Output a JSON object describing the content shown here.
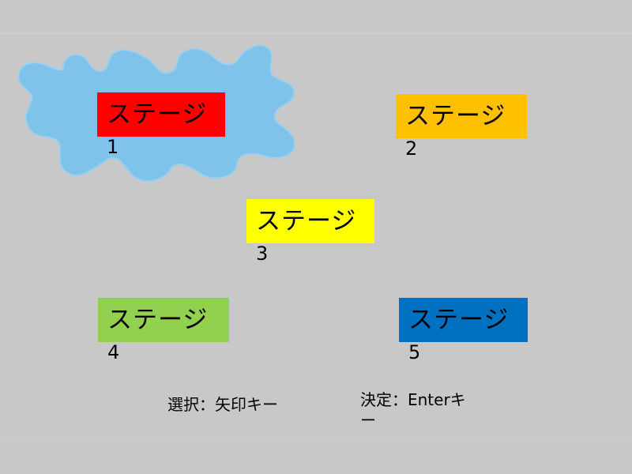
{
  "stages": [
    {
      "label": "ステージ",
      "number": "1",
      "color": "#ff0000",
      "selected": true
    },
    {
      "label": "ステージ",
      "number": "2",
      "color": "#ffc000",
      "selected": false
    },
    {
      "label": "ステージ",
      "number": "3",
      "color": "#ffff00",
      "selected": false
    },
    {
      "label": "ステージ",
      "number": "4",
      "color": "#92d050",
      "selected": false
    },
    {
      "label": "ステージ",
      "number": "5",
      "color": "#0070c0",
      "selected": false
    }
  ],
  "selector": {
    "color": "#7fc3ea",
    "icon": "splash-icon"
  },
  "instructions": {
    "select": "選択：矢印キー",
    "confirm": "決定：Enterキー"
  }
}
